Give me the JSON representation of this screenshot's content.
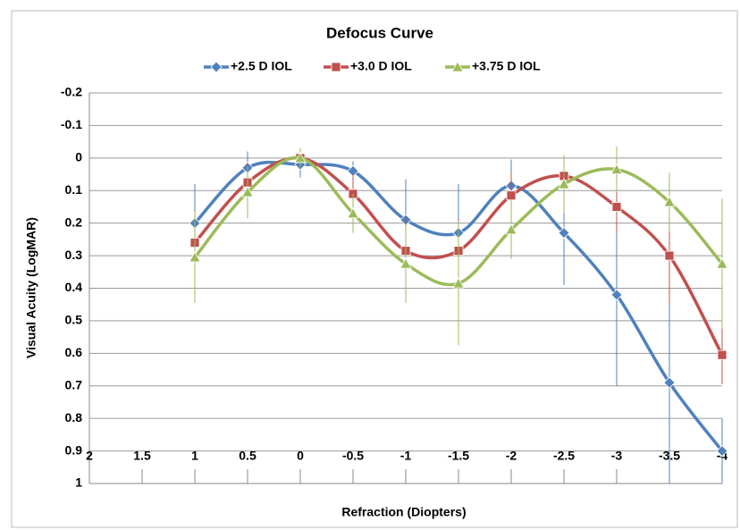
{
  "chart_data": {
    "type": "line",
    "title": "Defocus Curve",
    "x_label": "Refraction (Diopters)",
    "y_label": "Visual Acuity (LogMAR)",
    "x": [
      1,
      0.5,
      0,
      -0.5,
      -1,
      -1.5,
      -2,
      -2.5,
      -3,
      -3.5,
      -4
    ],
    "series": [
      {
        "name": "+2.5 D IOL",
        "color": "#4f81bd",
        "marker": "diamond",
        "values": [
          0.2,
          0.03,
          0.02,
          0.04,
          0.19,
          0.23,
          0.085,
          0.23,
          0.42,
          0.69,
          0.9
        ],
        "errors": [
          0.12,
          0.05,
          0.04,
          0.03,
          0.125,
          0.15,
          0.08,
          0.16,
          0.28,
          0.35,
          0.1
        ]
      },
      {
        "name": "+3.0 D IOL",
        "color": "#c0504d",
        "marker": "square",
        "values": [
          0.26,
          0.075,
          0.0,
          0.11,
          0.285,
          0.285,
          0.115,
          0.055,
          0.15,
          0.3,
          0.605
        ],
        "errors": [
          0.1,
          0.06,
          0.03,
          0.06,
          0.1,
          0.1,
          0.07,
          0.06,
          0.08,
          0.15,
          0.09
        ]
      },
      {
        "name": "+3.75 D IOL",
        "color": "#9bbb59",
        "marker": "triangle",
        "values": [
          0.305,
          0.105,
          0.0,
          0.17,
          0.325,
          0.385,
          0.22,
          0.08,
          0.035,
          0.135,
          0.325
        ],
        "errors": [
          0.14,
          0.08,
          0.03,
          0.06,
          0.12,
          0.19,
          0.09,
          0.09,
          0.07,
          0.09,
          0.2
        ]
      }
    ],
    "xlim": [
      2,
      -4
    ],
    "xticks": [
      2,
      1.5,
      1,
      0.5,
      0,
      -0.5,
      -1,
      -1.5,
      -2,
      -2.5,
      -3,
      -3.5,
      -4
    ],
    "ylim": [
      -0.2,
      1
    ],
    "yticks": [
      -0.2,
      -0.1,
      0,
      0.1,
      0.2,
      0.3,
      0.4,
      0.5,
      0.6,
      0.7,
      0.8,
      0.9,
      1
    ],
    "y_inverted": true,
    "grid": true,
    "legend": "top",
    "smooth": true
  }
}
